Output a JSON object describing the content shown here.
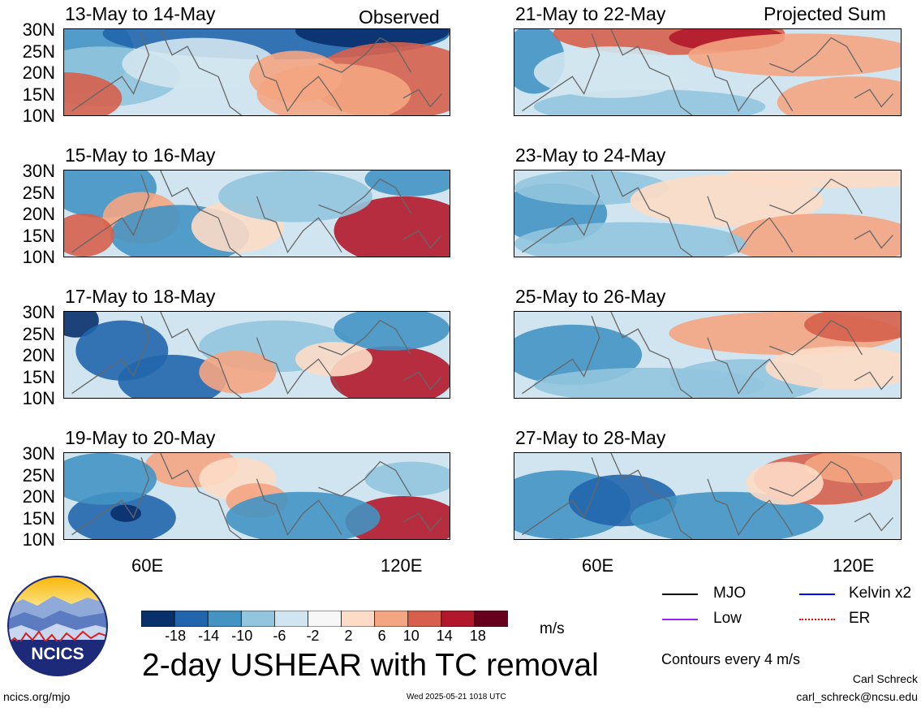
{
  "column_headers": {
    "left": "Observed",
    "right": "Projected Sum"
  },
  "panels_left": [
    {
      "title": "13-May to 14-May",
      "pattern": "obs1"
    },
    {
      "title": "15-May to 16-May",
      "pattern": "obs2"
    },
    {
      "title": "17-May to 18-May",
      "pattern": "obs3"
    },
    {
      "title": "19-May to 20-May",
      "pattern": "obs4"
    }
  ],
  "panels_right": [
    {
      "title": "21-May to 22-May",
      "pattern": "proj1"
    },
    {
      "title": "23-May to 24-May",
      "pattern": "proj2"
    },
    {
      "title": "25-May to 26-May",
      "pattern": "proj3"
    },
    {
      "title": "27-May to 28-May",
      "pattern": "proj4"
    }
  ],
  "lat_labels": [
    "30N",
    "25N",
    "20N",
    "15N",
    "10N"
  ],
  "lon_labels": [
    "60E",
    "120E"
  ],
  "colorbar": {
    "ticks": [
      "-18",
      "-14",
      "-10",
      "-6",
      "-2",
      "2",
      "6",
      "10",
      "14",
      "18"
    ],
    "colors": [
      "#08306b",
      "#2166ac",
      "#4393c3",
      "#92c5de",
      "#d1e5f0",
      "#f7f7f7",
      "#fddbc7",
      "#f4a582",
      "#d6604d",
      "#b2182b",
      "#67001f"
    ],
    "units": "m/s"
  },
  "legend": {
    "items": [
      {
        "label": "MJO",
        "color": "#000000",
        "style": "solid"
      },
      {
        "label": "Kelvin x2",
        "color": "#0000ff",
        "style": "solid"
      },
      {
        "label": "Low",
        "color": "#a020f0",
        "style": "solid"
      },
      {
        "label": "ER",
        "color": "#ff0000",
        "style": "dotted"
      }
    ],
    "contour_note": "Contours every 4 m/s"
  },
  "main_title": "2-day USHEAR with TC removal",
  "logo_text": "NCICS",
  "footer": {
    "url": "ncics.org/mjo",
    "timestamp": "Wed 2025-05-21 1018 UTC",
    "author": "Carl Schreck",
    "email": "carl_schreck@ncsu.edu"
  }
}
